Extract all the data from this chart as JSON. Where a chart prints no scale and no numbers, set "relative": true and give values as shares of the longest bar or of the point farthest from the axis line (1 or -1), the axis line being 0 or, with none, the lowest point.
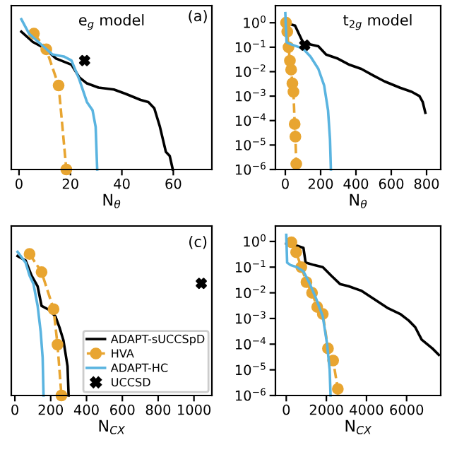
{
  "chart_data": [
    {
      "type": "line",
      "relative": true,
      "xlabel": "N$_{θ}$",
      "xlim": [
        -3,
        75
      ],
      "xticks": [
        0,
        20,
        40,
        60
      ],
      "annotations": [
        "e$_{g}$ model",
        "(a)"
      ],
      "grid": false,
      "legend": false,
      "series": [
        {
          "color": "#000000",
          "x": [
            0.9,
            5.4,
            9.9,
            14.4,
            20.4,
            23.4,
            26.4,
            30.9,
            36.9,
            41.4,
            47.3,
            50.3,
            52.6,
            54.8,
            57.1,
            58.6,
            59.8
          ],
          "values": [
            0.917,
            0.848,
            0.807,
            0.738,
            0.697,
            0.614,
            0.573,
            0.545,
            0.532,
            0.504,
            0.463,
            0.449,
            0.408,
            0.284,
            0.118,
            0.091,
            0
          ]
        },
        {
          "color": "#e8a531",
          "marker": "circle",
          "line_style": "dashed",
          "x": [
            5.8,
            10.6,
            15.4,
            18.4
          ],
          "values": [
            0.904,
            0.799,
            0.559,
            0
          ]
        },
        {
          "color": "#5ab4e0",
          "x": [
            0.9,
            3.9,
            8.4,
            12.9,
            17.4,
            20.4,
            23.4,
            26.4,
            28.6,
            29.8,
            30.4
          ],
          "values": [
            1.0,
            0.904,
            0.835,
            0.766,
            0.752,
            0.725,
            0.601,
            0.449,
            0.394,
            0.284,
            0
          ]
        },
        {
          "type": "scatter",
          "marker": "cross",
          "color": "#000000",
          "x": [
            25.5
          ],
          "values": [
            0.725
          ]
        }
      ]
    },
    {
      "type": "line",
      "log": "y",
      "xlabel": "N$_{θ}$",
      "xlim": [
        -56,
        880
      ],
      "xticks": [
        0,
        200,
        400,
        600,
        800
      ],
      "ylim": [
        1e-06,
        5
      ],
      "yticks": [
        {
          "value": 1e-06,
          "label": "10$^{−6}$"
        },
        {
          "value": 1e-05,
          "label": "10$^{−5}$"
        },
        {
          "value": 0.0001,
          "label": "10$^{−4}$"
        },
        {
          "value": 0.001,
          "label": "10$^{−3}$"
        },
        {
          "value": 0.01,
          "label": "10$^{−2}$"
        },
        {
          "value": 0.1,
          "label": "10$^{−1}$"
        },
        {
          "value": 1,
          "label": "10$^{0}$"
        }
      ],
      "annotations": [
        "t$_{2g}$ model"
      ],
      "grid": false,
      "legend": false,
      "series": [
        {
          "color": "#000000",
          "x": [
            11,
            55,
            88,
            110,
            121,
            143,
            187,
            231,
            298,
            364,
            430,
            496,
            562,
            650,
            716,
            760,
            778,
            793
          ],
          "values": [
            0.93,
            0.76,
            0.24,
            0.11,
            0.13,
            0.13,
            0.11,
            0.05,
            0.034,
            0.019,
            0.013,
            0.0071,
            0.004,
            0.0022,
            0.0015,
            0.001,
            0.00058,
            0.00021
          ]
        },
        {
          "color": "#e8a531",
          "marker": "circle",
          "line_style": "dashed",
          "x": [
            4,
            11,
            18,
            26,
            33,
            40,
            46,
            53,
            57,
            62
          ],
          "values": [
            1.0,
            0.43,
            0.1,
            0.028,
            0.012,
            0.0033,
            0.0015,
            7.2e-05,
            2.2e-05,
            1.7e-06
          ]
        },
        {
          "color": "#5ab4e0",
          "x": [
            0,
            7,
            33,
            99,
            143,
            187,
            220,
            242,
            253,
            258
          ],
          "values": [
            2.45,
            0.16,
            0.13,
            0.089,
            0.041,
            0.013,
            0.0027,
            0.00026,
            1.7e-05,
            1e-06
          ]
        },
        {
          "type": "scatter",
          "marker": "cross",
          "color": "#000000",
          "x": [
            110
          ],
          "values": [
            0.12
          ]
        }
      ]
    },
    {
      "type": "line",
      "relative": true,
      "xlabel": "N$_{CX}$",
      "xlim": [
        -20,
        1100
      ],
      "xticks": [
        0,
        200,
        400,
        600,
        800,
        1000
      ],
      "annotations": [
        "(c)"
      ],
      "grid": false,
      "legend": "bottom right",
      "series": [
        {
          "name": "ADAPT-sUCCSpD",
          "color": "#000000",
          "x": [
            15,
            60,
            93,
            127,
            149,
            193,
            227,
            249,
            271,
            294,
            300
          ],
          "values": [
            0.971,
            0.94,
            0.835,
            0.76,
            0.624,
            0.595,
            0.549,
            0.474,
            0.385,
            0.204,
            0
          ]
        },
        {
          "name": "HVA",
          "color": "#e8a531",
          "marker": "circle",
          "line_style": "dashed",
          "x": [
            82,
            149,
            216,
            238,
            260
          ],
          "values": [
            0.985,
            0.859,
            0.601,
            0.354,
            0
          ]
        },
        {
          "name": "ADAPT-HC",
          "color": "#5ab4e0",
          "x": [
            15,
            60,
            82,
            104,
            127,
            144,
            155,
            160
          ],
          "values": [
            1.0,
            0.925,
            0.835,
            0.775,
            0.624,
            0.445,
            0.264,
            0
          ]
        },
        {
          "name": "UCCSD",
          "type": "scatter",
          "marker": "cross",
          "color": "#000000",
          "x": [
            1041
          ],
          "values": [
            0.781
          ]
        }
      ]
    },
    {
      "type": "line",
      "log": "y",
      "xlabel": "N$_{CX}$",
      "xlim": [
        -540,
        7700
      ],
      "xticks": [
        0,
        2000,
        4000,
        6000
      ],
      "ylim": [
        1e-06,
        4
      ],
      "yticks": [
        {
          "value": 1e-06,
          "label": "10$^{−6}$"
        },
        {
          "value": 1e-05,
          "label": "10$^{−5}$"
        },
        {
          "value": 0.0001,
          "label": "10$^{−4}$"
        },
        {
          "value": 0.001,
          "label": "10$^{−3}$"
        },
        {
          "value": 0.01,
          "label": "10$^{−2}$"
        },
        {
          "value": 0.1,
          "label": "10$^{−1}$"
        },
        {
          "value": 1,
          "label": "10$^{0}$"
        }
      ],
      "grid": false,
      "legend": false,
      "series": [
        {
          "color": "#000000",
          "x": [
            0,
            536,
            857,
            964,
            1393,
            1821,
            2250,
            2679,
            3107,
            3750,
            4393,
            5036,
            5679,
            6107,
            6429,
            6750,
            7286,
            7607
          ],
          "values": [
            0.83,
            0.68,
            0.56,
            0.15,
            0.12,
            0.1,
            0.046,
            0.022,
            0.018,
            0.012,
            0.0056,
            0.0026,
            0.0015,
            0.00083,
            0.00046,
            0.00015,
            6.8e-05,
            3.8e-05
          ]
        },
        {
          "color": "#e8a531",
          "marker": "circle",
          "line_style": "dashed",
          "x": [
            257,
            493,
            750,
            1007,
            1286,
            1543,
            1821,
            2079,
            2336,
            2571
          ],
          "values": [
            0.93,
            0.38,
            0.1,
            0.026,
            0.01,
            0.0028,
            0.0015,
            6.8e-05,
            2.3e-05,
            1.8e-06
          ]
        },
        {
          "color": "#5ab4e0",
          "x": [
            0,
            43,
            214,
            536,
            857,
            1179,
            1500,
            1821,
            2036,
            2164,
            2207
          ],
          "values": [
            1.8,
            0.15,
            0.12,
            0.1,
            0.068,
            0.022,
            0.0056,
            0.0012,
            0.0001,
            1e-05,
            1e-06
          ]
        }
      ]
    }
  ]
}
